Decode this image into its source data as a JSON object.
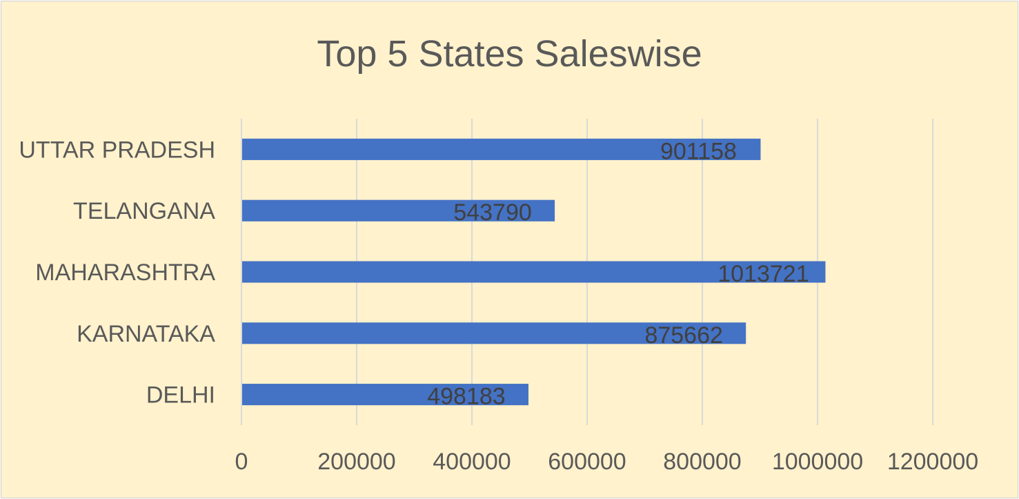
{
  "chart_data": {
    "type": "bar",
    "orientation": "horizontal",
    "title": "Top 5 States Saleswise",
    "categories": [
      "UTTAR PRADESH",
      "TELANGANA",
      "MAHARASHTRA",
      "KARNATAKA",
      "DELHI"
    ],
    "values": [
      901158,
      543790,
      1013721,
      875662,
      498183
    ],
    "data_labels": [
      "901158",
      "543790",
      "1013721",
      "875662",
      "498183"
    ],
    "xlim": [
      0,
      1200000
    ],
    "x_ticks": [
      0,
      200000,
      400000,
      600000,
      800000,
      1000000,
      1200000
    ],
    "x_tick_labels": [
      "0",
      "200000",
      "400000",
      "600000",
      "800000",
      "1000000",
      "1200000"
    ],
    "xlabel": "",
    "ylabel": "",
    "grid": true,
    "legend": "none"
  },
  "colors": {
    "background": "#fff2cc",
    "bar": "#4472c4",
    "gridline": "#d9d9d9",
    "text": "#595959"
  }
}
